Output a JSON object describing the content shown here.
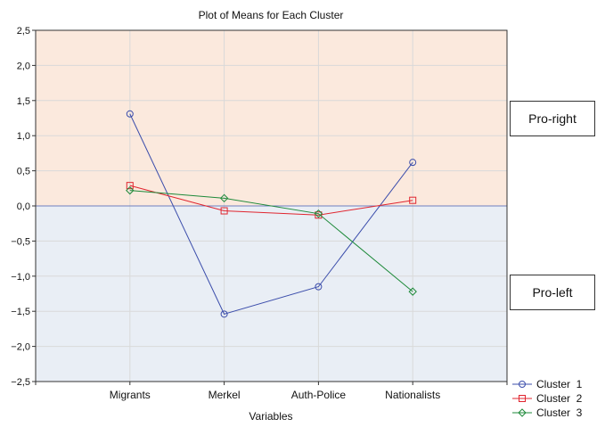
{
  "chart_data": {
    "type": "line",
    "title": "Plot of Means for Each Cluster",
    "xlabel": "Variables",
    "ylabel": "",
    "categories": [
      "Migrants",
      "Merkel",
      "Auth-Police",
      "Nationalists"
    ],
    "ylim": [
      -2.5,
      2.5
    ],
    "yticks": [
      "2,5",
      "2,0",
      "1,5",
      "1,0",
      "0,5",
      "0,0",
      "−0,5",
      "−1,0",
      "−1,5",
      "−2,0",
      "−2,5"
    ],
    "ytick_values": [
      2.5,
      2.0,
      1.5,
      1.0,
      0.5,
      0.0,
      -0.5,
      -1.0,
      -1.5,
      -2.0,
      -2.5
    ],
    "grid": true,
    "legend_position": "bottom-right",
    "regions": {
      "positive_color": "#fbe9dd",
      "negative_color": "#e9eef5"
    },
    "series": [
      {
        "name": "Cluster  1",
        "values": [
          1.31,
          -1.54,
          -1.15,
          0.62
        ],
        "color": "#3b4dab",
        "marker": "circle"
      },
      {
        "name": "Cluster  2",
        "values": [
          0.29,
          -0.07,
          -0.13,
          0.08
        ],
        "color": "#e0252f",
        "marker": "square"
      },
      {
        "name": "Cluster  3",
        "values": [
          0.22,
          0.11,
          -0.11,
          -1.22
        ],
        "color": "#1e8a3a",
        "marker": "diamond"
      }
    ]
  },
  "annotations": {
    "pro_right": "Pro-right",
    "pro_left": "Pro-left"
  }
}
